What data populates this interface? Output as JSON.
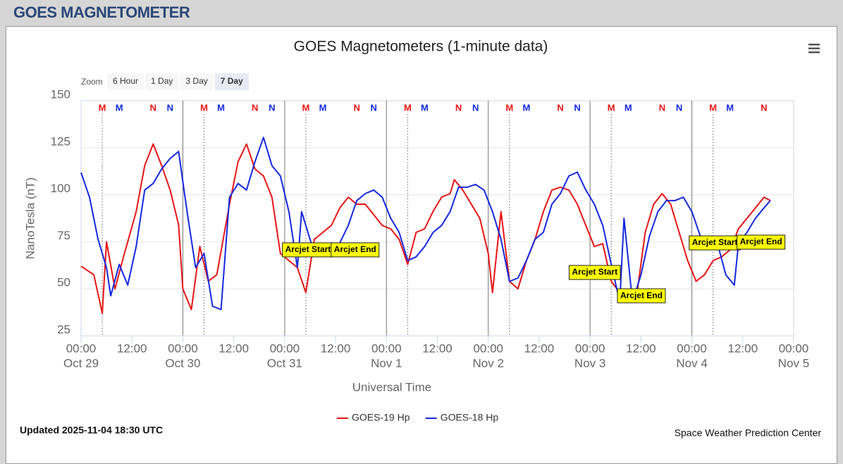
{
  "header": {
    "title": "GOES MAGNETOMETER"
  },
  "zoom": {
    "label": "Zoom",
    "buttons": [
      "6 Hour",
      "1 Day",
      "3 Day",
      "7 Day"
    ],
    "active": 3
  },
  "footer": {
    "updated": "Updated 2025-11-04 18:30 UTC",
    "credit": "Space Weather Prediction Center"
  },
  "chart_data": {
    "type": "line",
    "title": "GOES Magnetometers (1-minute data)",
    "x_label": "Universal Time",
    "y_label": "NanoTesla (nT)",
    "xlim": [
      0,
      168
    ],
    "xticks": [
      {
        "value": 0,
        "label": "00:00"
      },
      {
        "value": 12,
        "label": "12:00"
      },
      {
        "value": 24,
        "label": "00:00"
      },
      {
        "value": 36,
        "label": "12:00"
      },
      {
        "value": 48,
        "label": "00:00"
      },
      {
        "value": 60,
        "label": "12:00"
      },
      {
        "value": 72,
        "label": "00:00"
      },
      {
        "value": 84,
        "label": "12:00"
      },
      {
        "value": 96,
        "label": "00:00"
      },
      {
        "value": 108,
        "label": "12:00"
      },
      {
        "value": 120,
        "label": "00:00"
      },
      {
        "value": 132,
        "label": "12:00"
      },
      {
        "value": 144,
        "label": "00:00"
      },
      {
        "value": 156,
        "label": "12:00"
      },
      {
        "value": 168,
        "label": "00:00"
      }
    ],
    "xtick_dates": [
      {
        "value": 0,
        "label": "Oct 29"
      },
      {
        "value": 24,
        "label": "Oct 30"
      },
      {
        "value": 48,
        "label": "Oct 31"
      },
      {
        "value": 72,
        "label": "Nov 1"
      },
      {
        "value": 96,
        "label": "Nov 2"
      },
      {
        "value": 120,
        "label": "Nov 3"
      },
      {
        "value": 144,
        "label": "Nov 4"
      },
      {
        "value": 168,
        "label": "Nov 5"
      }
    ],
    "plot_lines": [
      24,
      48,
      72,
      96,
      120,
      144
    ],
    "ylim": [
      25,
      150
    ],
    "yticks": [
      25,
      50,
      75,
      100,
      125,
      150
    ],
    "grid": true,
    "series": [
      {
        "name": "GOES-19 Hp",
        "color": "#e81414",
        "x": [
          0,
          3,
          5,
          6,
          8,
          10,
          13,
          15,
          17,
          19,
          21,
          23,
          24,
          26,
          28,
          30,
          32,
          35,
          37,
          39,
          41,
          43,
          45,
          47,
          49,
          51,
          53,
          55,
          57,
          59,
          61,
          63,
          65,
          67,
          69,
          71,
          73,
          75,
          77,
          79,
          81,
          83,
          85,
          87,
          88,
          90,
          92,
          94,
          96,
          97,
          99,
          101,
          103,
          105,
          107,
          109,
          111,
          113,
          115,
          117,
          119,
          121,
          123,
          125,
          127,
          129,
          131,
          133,
          135,
          137,
          139,
          141,
          143,
          145,
          147,
          149,
          151,
          153,
          155,
          157,
          159,
          161,
          162.5
        ],
        "values": [
          62,
          57.5,
          37,
          75,
          50,
          67,
          91,
          115.5,
          127,
          115.5,
          102.5,
          84,
          50,
          39,
          72.5,
          54,
          57.5,
          95,
          117.5,
          127,
          113.7,
          110,
          98.7,
          68.8,
          65,
          61.3,
          48,
          76.3,
          80,
          83.7,
          93,
          98.7,
          95,
          95,
          89.4,
          83.7,
          81.9,
          76.3,
          63,
          80,
          81.9,
          91.2,
          98.7,
          100.6,
          108,
          102.5,
          95,
          87.5,
          68.8,
          48,
          91,
          54,
          50,
          65,
          76,
          91,
          102.5,
          104,
          102.5,
          95,
          83.7,
          72.5,
          74,
          54,
          48,
          43,
          46.3,
          80,
          95,
          100.6,
          95,
          80,
          65,
          54,
          57.5,
          65,
          67,
          70.7,
          82,
          87.5,
          93,
          98.7,
          96.9
        ]
      },
      {
        "name": "GOES-18 Hp",
        "color": "#1428e0",
        "x": [
          0,
          2,
          4,
          6,
          7,
          9,
          11,
          13,
          15,
          17,
          19,
          21,
          23,
          25,
          27,
          29,
          31,
          33,
          35,
          37,
          39,
          41,
          43,
          45,
          47,
          49,
          51,
          52,
          55,
          57,
          59,
          61,
          63,
          65,
          67,
          69,
          71,
          73,
          75,
          77,
          79,
          81,
          83,
          85,
          87,
          89,
          91,
          93,
          95,
          97,
          99,
          101,
          103,
          105,
          107,
          109,
          111,
          113,
          115,
          117,
          119,
          121,
          123,
          125,
          127,
          128,
          130,
          132,
          134,
          136,
          138,
          140,
          142,
          144,
          146,
          148,
          150,
          152,
          154,
          155,
          157,
          159,
          161,
          162.5
        ],
        "values": [
          111.8,
          98.7,
          76.3,
          61.3,
          46.3,
          63,
          52,
          72.5,
          102.5,
          106,
          113.7,
          119.3,
          123,
          91,
          61.3,
          68.8,
          40.7,
          39,
          98.7,
          106,
          102.5,
          117.5,
          130.5,
          115.5,
          110,
          91,
          61.3,
          91,
          68.8,
          72.5,
          72.5,
          74.4,
          83.7,
          96.9,
          100.6,
          102.5,
          98.7,
          87.5,
          80,
          65,
          67,
          72.5,
          80,
          83.7,
          91,
          104,
          104,
          105.5,
          102.5,
          91,
          76.3,
          54,
          55.7,
          65,
          76.3,
          80,
          95,
          100.6,
          110,
          112,
          102.5,
          95,
          83.7,
          63,
          43,
          87.5,
          43,
          57.5,
          78,
          91,
          96.9,
          96.9,
          98.7,
          91,
          78,
          76.3,
          74.4,
          57.5,
          52,
          74.4,
          80,
          87.5,
          93,
          96.9
        ]
      }
    ],
    "markers": [
      {
        "label": "M",
        "x": 5,
        "color": "#e81414",
        "dotted": true
      },
      {
        "label": "M",
        "x": 9,
        "color": "#1428e0",
        "dotted": false
      },
      {
        "label": "N",
        "x": 17,
        "color": "#e81414",
        "dotted": false
      },
      {
        "label": "N",
        "x": 21,
        "color": "#1428e0",
        "dotted": false
      },
      {
        "label": "M",
        "x": 29,
        "color": "#e81414",
        "dotted": true
      },
      {
        "label": "M",
        "x": 33,
        "color": "#1428e0",
        "dotted": false
      },
      {
        "label": "N",
        "x": 41,
        "color": "#e81414",
        "dotted": false
      },
      {
        "label": "N",
        "x": 45,
        "color": "#1428e0",
        "dotted": false
      },
      {
        "label": "M",
        "x": 53,
        "color": "#e81414",
        "dotted": true
      },
      {
        "label": "M",
        "x": 57,
        "color": "#1428e0",
        "dotted": false
      },
      {
        "label": "N",
        "x": 65,
        "color": "#e81414",
        "dotted": false
      },
      {
        "label": "N",
        "x": 69,
        "color": "#1428e0",
        "dotted": false
      },
      {
        "label": "M",
        "x": 77,
        "color": "#e81414",
        "dotted": true
      },
      {
        "label": "M",
        "x": 81,
        "color": "#1428e0",
        "dotted": false
      },
      {
        "label": "N",
        "x": 89,
        "color": "#e81414",
        "dotted": false
      },
      {
        "label": "N",
        "x": 93,
        "color": "#1428e0",
        "dotted": false
      },
      {
        "label": "M",
        "x": 101,
        "color": "#e81414",
        "dotted": true
      },
      {
        "label": "M",
        "x": 105,
        "color": "#1428e0",
        "dotted": false
      },
      {
        "label": "N",
        "x": 113,
        "color": "#e81414",
        "dotted": false
      },
      {
        "label": "N",
        "x": 117,
        "color": "#1428e0",
        "dotted": false
      },
      {
        "label": "M",
        "x": 125,
        "color": "#e81414",
        "dotted": true
      },
      {
        "label": "M",
        "x": 129,
        "color": "#1428e0",
        "dotted": false
      },
      {
        "label": "N",
        "x": 137,
        "color": "#e81414",
        "dotted": false
      },
      {
        "label": "N",
        "x": 141,
        "color": "#1428e0",
        "dotted": false
      },
      {
        "label": "M",
        "x": 149,
        "color": "#e81414",
        "dotted": true
      },
      {
        "label": "M",
        "x": 153,
        "color": "#1428e0",
        "dotted": false
      },
      {
        "label": "N",
        "x": 161,
        "color": "#e81414",
        "dotted": false
      }
    ],
    "annotations": [
      {
        "text": "Arcjet Start",
        "x": 53.5,
        "y": 70.7
      },
      {
        "text": "Arcjet End",
        "x": 64.6,
        "y": 70.7
      },
      {
        "text": "Arcjet Start",
        "x": 121.1,
        "y": 58.7
      },
      {
        "text": "Arcjet End",
        "x": 132.1,
        "y": 46.3
      },
      {
        "text": "Arcjet Start",
        "x": 149.4,
        "y": 74.4
      },
      {
        "text": "Arcjet End",
        "x": 160.3,
        "y": 74.8
      }
    ]
  }
}
